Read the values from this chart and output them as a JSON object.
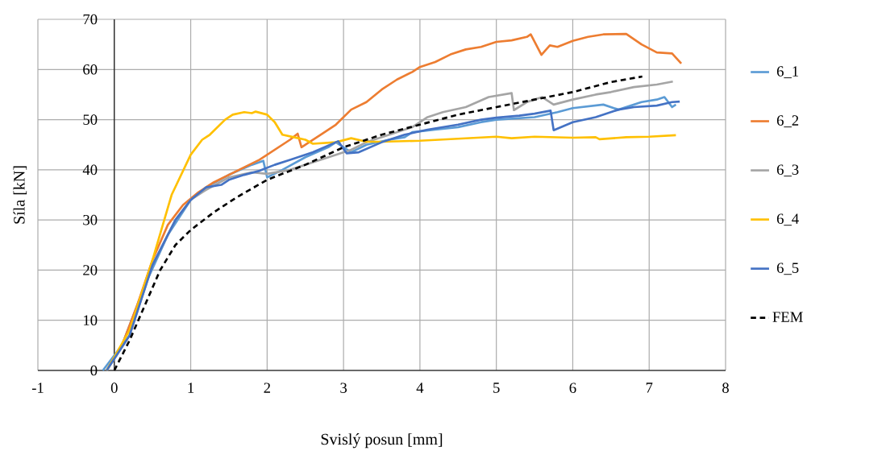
{
  "chart_data": {
    "type": "line",
    "xlabel": "Svislý posun [mm]",
    "ylabel": "Síla [kN]",
    "xlim": [
      -1,
      8
    ],
    "xticks": [
      -1,
      0,
      1,
      2,
      3,
      4,
      5,
      6,
      7,
      8
    ],
    "ylim": [
      0,
      70
    ],
    "yticks": [
      0,
      10,
      20,
      30,
      40,
      50,
      60,
      70
    ],
    "grid": true,
    "legend": "right",
    "series": [
      {
        "name": "6_1",
        "color": "#5b9bd5",
        "line_style": "solid",
        "x": [
          -0.15,
          0.1,
          0.4,
          0.7,
          1.0,
          1.2,
          1.5,
          1.8,
          1.95,
          2.0,
          2.2,
          2.5,
          2.8,
          2.9,
          3.0,
          3.1,
          3.3,
          3.6,
          3.8,
          3.9,
          4.2,
          4.5,
          4.8,
          5.0,
          5.5,
          5.8,
          6.0,
          6.4,
          6.6,
          6.9,
          7.1,
          7.2,
          7.3,
          7.35
        ],
        "values": [
          0,
          5,
          17,
          27,
          34,
          36.5,
          39,
          41,
          41.8,
          38.5,
          40,
          42.5,
          44.5,
          45.5,
          44.5,
          43.5,
          45,
          46,
          46.5,
          47.5,
          48,
          48.5,
          49.5,
          50,
          50.5,
          51.5,
          52.3,
          53,
          52,
          53.5,
          54,
          54.5,
          52.5,
          53
        ]
      },
      {
        "name": "6_2",
        "color": "#ed7d31",
        "line_style": "solid",
        "x": [
          -0.1,
          0.1,
          0.3,
          0.5,
          0.7,
          0.9,
          1.1,
          1.3,
          1.5,
          1.7,
          1.9,
          2.1,
          2.3,
          2.4,
          2.45,
          2.55,
          2.7,
          2.9,
          3.1,
          3.3,
          3.5,
          3.7,
          3.9,
          4.0,
          4.2,
          4.4,
          4.6,
          4.8,
          5.0,
          5.2,
          5.4,
          5.45,
          5.59,
          5.7,
          5.8,
          6.0,
          6.2,
          6.4,
          6.7,
          6.9,
          7.1,
          7.3,
          7.42
        ],
        "values": [
          0,
          5,
          13,
          22,
          29,
          33,
          35.5,
          37.5,
          39,
          40.5,
          42,
          44,
          46,
          47.2,
          44.5,
          45.5,
          47,
          49,
          52,
          53.5,
          56,
          58,
          59.5,
          60.5,
          61.5,
          63,
          64,
          64.5,
          65.5,
          65.8,
          66.5,
          67,
          62.9,
          64.8,
          64.5,
          65.7,
          66.5,
          67,
          67.1,
          65,
          63.4,
          63.2,
          61.2
        ]
      },
      {
        "name": "6_3",
        "color": "#a5a5a5",
        "line_style": "solid",
        "x": [
          -0.1,
          0.2,
          0.5,
          0.8,
          1.0,
          1.2,
          1.5,
          1.8,
          2.0,
          2.3,
          2.6,
          2.9,
          3.1,
          3.3,
          3.6,
          3.9,
          4.1,
          4.3,
          4.6,
          4.9,
          5.2,
          5.23,
          5.4,
          5.6,
          5.75,
          6.0,
          6.3,
          6.5,
          6.8,
          7.1,
          7.31
        ],
        "values": [
          0,
          7,
          21,
          30,
          34,
          36,
          38.5,
          39.5,
          39.2,
          40,
          41.5,
          43,
          44,
          45.5,
          47,
          48.5,
          50.5,
          51.5,
          52.5,
          54.5,
          55.3,
          51.9,
          53.5,
          54.5,
          53,
          54,
          55,
          55.5,
          56.5,
          57,
          57.6
        ]
      },
      {
        "name": "6_4",
        "color": "#ffc000",
        "line_style": "solid",
        "x": [
          -0.1,
          0.2,
          0.5,
          0.75,
          1.0,
          1.15,
          1.25,
          1.45,
          1.55,
          1.7,
          1.8,
          1.85,
          2.0,
          2.1,
          2.2,
          2.35,
          2.5,
          2.6,
          2.9,
          3.1,
          3.3,
          3.5,
          4.0,
          4.5,
          5.0,
          5.2,
          5.5,
          6.0,
          6.3,
          6.35,
          6.7,
          7.0,
          7.35
        ],
        "values": [
          0,
          8,
          22,
          35,
          43,
          46,
          47,
          50,
          51,
          51.5,
          51.3,
          51.6,
          51,
          49.5,
          47,
          46.5,
          46,
          45.2,
          45.5,
          46.3,
          45.6,
          45.6,
          45.8,
          46.2,
          46.6,
          46.3,
          46.6,
          46.4,
          46.5,
          46.1,
          46.5,
          46.6,
          46.9
        ]
      },
      {
        "name": "6_5",
        "color": "#4472c4",
        "line_style": "solid",
        "x": [
          -0.1,
          0.2,
          0.5,
          0.8,
          1.0,
          1.2,
          1.4,
          1.5,
          1.7,
          1.9,
          2.1,
          2.3,
          2.6,
          2.93,
          3.04,
          3.2,
          3.5,
          3.8,
          4.1,
          4.5,
          4.8,
          5.0,
          5.3,
          5.5,
          5.71,
          5.75,
          6.0,
          6.3,
          6.6,
          6.8,
          7.1,
          7.3,
          7.4
        ],
        "values": [
          0,
          7,
          21,
          30,
          34,
          36.5,
          37,
          38,
          39,
          39.8,
          41,
          42,
          43.5,
          45.7,
          43.3,
          43.5,
          45.5,
          47,
          48,
          49,
          50,
          50.4,
          50.8,
          51.2,
          51.8,
          47.9,
          49.5,
          50.5,
          52,
          52.5,
          52.8,
          53.5,
          53.6
        ]
      },
      {
        "name": "FEM",
        "color": "#000000",
        "line_style": "dashed",
        "x": [
          0,
          0.2,
          0.4,
          0.6,
          0.8,
          1.0,
          1.3,
          1.6,
          2.0,
          2.5,
          3.0,
          3.5,
          4.0,
          4.5,
          5.0,
          5.5,
          6.0,
          6.5,
          6.91
        ],
        "values": [
          0,
          6,
          13,
          20,
          25,
          28,
          31.5,
          34.5,
          38,
          41,
          44.5,
          47,
          49,
          51,
          52.5,
          54,
          55.5,
          57.5,
          58.6
        ]
      }
    ]
  }
}
